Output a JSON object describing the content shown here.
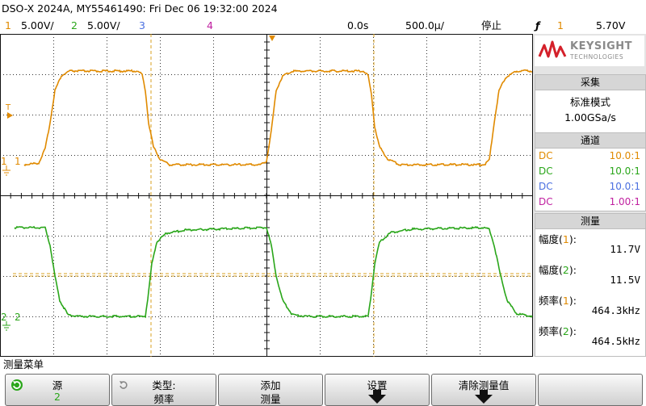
{
  "title": "DSO-X 2024A, MY55461490: Fri Dec 06 19:32:00 2024",
  "status": {
    "ch1_num": "1",
    "ch1_scale": "5.00V/",
    "ch2_num": "2",
    "ch2_scale": "5.00V/",
    "ch3_num": "3",
    "ch4_num": "4",
    "time_offset": "0.0s",
    "timebase": "500.0µ/",
    "run_state": "停止",
    "trigger_source": "1",
    "trigger_level": "5.70V"
  },
  "colors": {
    "ch1": "#e08a00",
    "ch2": "#2aa61a",
    "ch3": "#4a6fe0",
    "ch4": "#c020a0",
    "grid": "#1a1a1a",
    "cursor": "#d9a020",
    "keysight_red": "#d4202a"
  },
  "trace": {
    "ch1_marker": "1",
    "ch2_marker": "2",
    "trig_marker": "T"
  },
  "sidebar": {
    "logo_line1": "KEYSIGHT",
    "logo_line2": "TECHNOLOGIES",
    "acq_title": "采集",
    "acq_mode": "标准模式",
    "acq_rate": "1.00GSa/s",
    "chan_title": "通道",
    "channels": [
      {
        "coupling": "DC",
        "probe": "10.0:1"
      },
      {
        "coupling": "DC",
        "probe": "10.0:1"
      },
      {
        "coupling": "DC",
        "probe": "10.0:1"
      },
      {
        "coupling": "DC",
        "probe": "1.00:1"
      }
    ],
    "meas_title": "测量",
    "measurements": [
      {
        "label_pre": "幅度(",
        "ch": "1",
        "label_post": "):",
        "value": "11.7V"
      },
      {
        "label_pre": "幅度(",
        "ch": "2",
        "label_post": "):",
        "value": "11.5V"
      },
      {
        "label_pre": "频率(",
        "ch": "1",
        "label_post": "):",
        "value": "464.3kHz"
      },
      {
        "label_pre": "频率(",
        "ch": "2",
        "label_post": "):",
        "value": "464.5kHz"
      }
    ]
  },
  "menu": {
    "title": "测量菜单",
    "keys": [
      {
        "line1": "源",
        "line2": "2"
      },
      {
        "line1": "类型:",
        "line2": "频率"
      },
      {
        "line1": "添加",
        "line2": "测量"
      },
      {
        "line1": "设置",
        "line2": ""
      },
      {
        "line1": "清除测量值",
        "line2": ""
      },
      {
        "line1": "",
        "line2": ""
      }
    ]
  }
}
